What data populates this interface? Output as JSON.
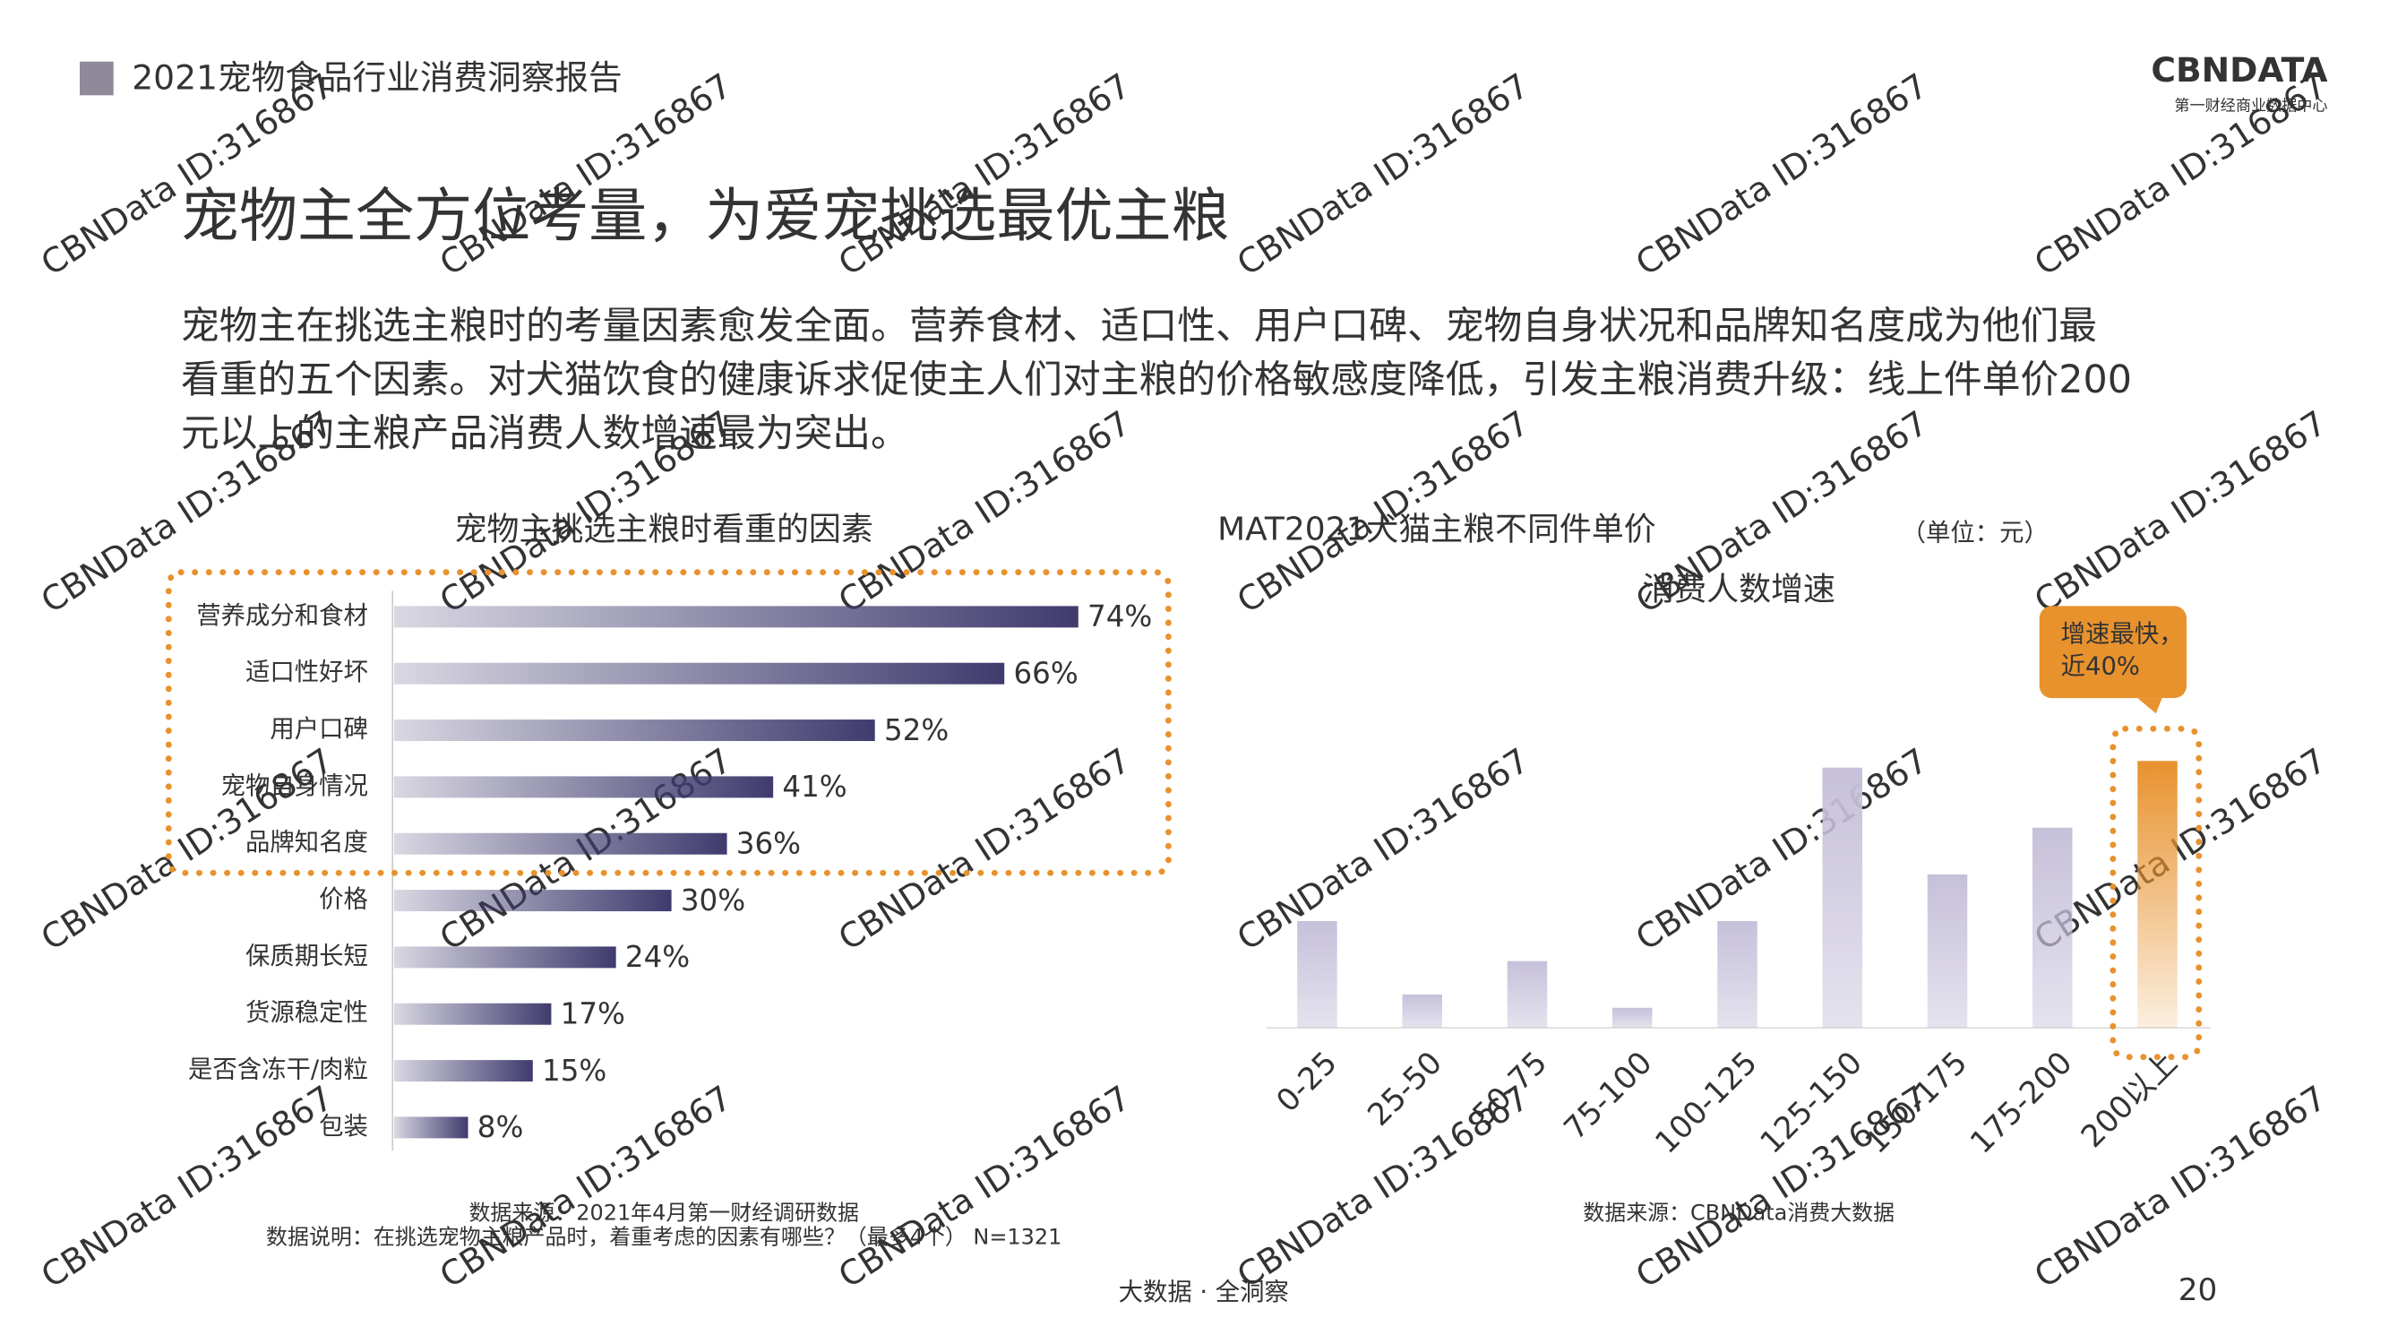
{
  "header": {
    "report": "2021宠物食品行业消费洞察报告",
    "logo": "CBNDATA",
    "logo_sub": "第一财经商业数据中心"
  },
  "title": "宠物主全方位考量，为爱宠挑选最优主粮",
  "paragraph": [
    "宠物主在挑选主粮时的考量因素愈发全面。营养食材、适口性、用户口碑、宠物自身状况和品牌知名度成为他们最",
    "看重的五个因素。对犬猫饮食的健康诉求促使主人们对主粮的价格敏感度降低，引发主粮消费升级：线上件单价200",
    "元以上的主粮产品消费人数增速最为突出。"
  ],
  "watermark": "CBNData ID:316867",
  "footer": {
    "slogan": "大数据 · 全洞察",
    "page": "20"
  },
  "chart_data": [
    {
      "type": "hbar",
      "title": "宠物主挑选主粮时看重的因素",
      "categories": [
        "营养成分和食材",
        "适口性好坏",
        "用户口碑",
        "宠物自身情况",
        "品牌知名度",
        "价格",
        "保质期长短",
        "货源稳定性",
        "是否含冻干/肉粒",
        "包装"
      ],
      "values": [
        74,
        66,
        52,
        41,
        36,
        30,
        24,
        17,
        15,
        8
      ],
      "value_labels": [
        "74%",
        "66%",
        "52%",
        "41%",
        "36%",
        "30%",
        "24%",
        "17%",
        "15%",
        "8%"
      ],
      "color": "#3f3b6e",
      "highlight_color": "#e8922e",
      "source": "数据来源：2021年4月第一财经调研数据",
      "note": "数据说明：在挑选宠物主粮产品时，着重考虑的因素有哪些？（最多4个） N=1321"
    },
    {
      "type": "bar",
      "title": "MAT2021犬猫主粮不同件单价",
      "unit": "（单位：元）",
      "subtitle": "消费人数增速",
      "categories": [
        "0-25",
        "25-50",
        "50-75",
        "75-100",
        "100-125",
        "125-150",
        "150-175",
        "175-200",
        "200以上"
      ],
      "values": [
        16,
        5,
        10,
        3,
        16,
        39,
        23,
        30,
        40
      ],
      "colors": [
        "#c6c0da",
        "#c6c0da",
        "#c6c0da",
        "#c6c0da",
        "#c6c0da",
        "#c6c0da",
        "#c6c0da",
        "#c6c0da",
        "#e8922e"
      ],
      "annotation": [
        "增速最快，",
        "近40%"
      ],
      "source": "数据来源：CBNData消费大数据"
    }
  ]
}
